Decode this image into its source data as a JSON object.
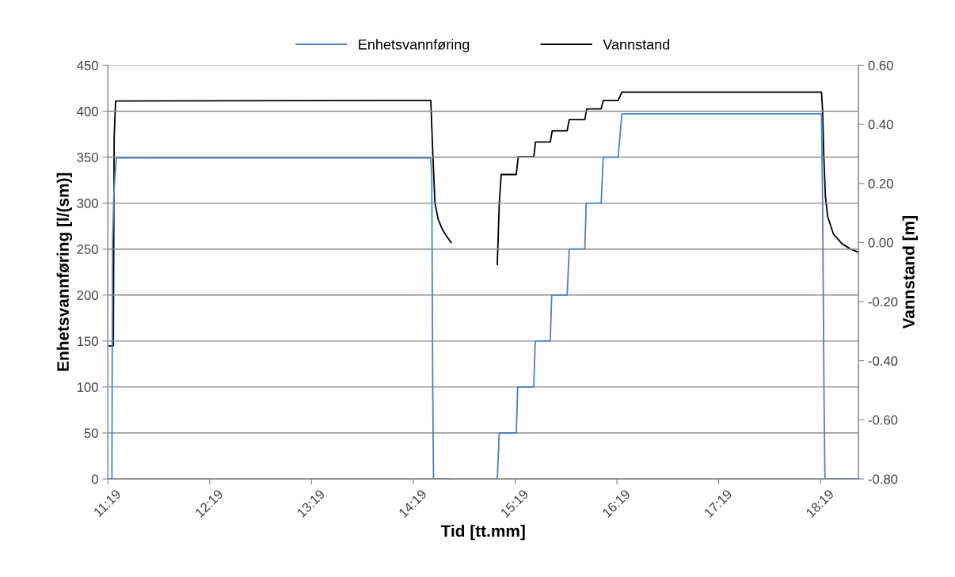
{
  "chart_data": {
    "type": "line",
    "xlabel": "Tid [tt.mm]",
    "ylabel": "Enhetsvannføring [l/(sm)]",
    "y2label": "Vannstand [m]",
    "xlim": [
      11.3167,
      18.69
    ],
    "xticks": [
      {
        "value": 11.3167,
        "label": "11:19"
      },
      {
        "value": 12.3167,
        "label": "12:19"
      },
      {
        "value": 13.3167,
        "label": "13:19"
      },
      {
        "value": 14.3167,
        "label": "14:19"
      },
      {
        "value": 15.3167,
        "label": "15:19"
      },
      {
        "value": 16.3167,
        "label": "16:19"
      },
      {
        "value": 17.3167,
        "label": "17:19"
      },
      {
        "value": 18.3167,
        "label": "18:19"
      }
    ],
    "ylim": [
      0,
      450
    ],
    "yticks": [
      0,
      50,
      100,
      150,
      200,
      250,
      300,
      350,
      400,
      450
    ],
    "y2lim": [
      -0.8,
      0.6
    ],
    "y2ticks": [
      {
        "value": -0.8,
        "label": "-0.80"
      },
      {
        "value": -0.6,
        "label": "-0.60"
      },
      {
        "value": -0.4,
        "label": "-0.40"
      },
      {
        "value": -0.2,
        "label": "-0.20"
      },
      {
        "value": 0,
        "label": "0.00"
      },
      {
        "value": 0.2,
        "label": "0.20"
      },
      {
        "value": 0.4,
        "label": "0.40"
      },
      {
        "value": 0.6,
        "label": "0.60"
      }
    ],
    "grid": "y",
    "legend": "top",
    "marker": "none",
    "line_style": "solid",
    "series": [
      {
        "name": "Enhetsvannføring",
        "color": "#4f81bd",
        "x": [
          11.3167,
          11.356,
          11.362,
          11.378,
          11.4,
          14.488,
          14.498,
          14.507,
          14.515,
          14.688,
          14.9,
          15.1415,
          15.161,
          15.328,
          15.342,
          15.5,
          15.514,
          15.662,
          15.676,
          15.828,
          15.848,
          16.001,
          16.015,
          16.162,
          16.182,
          16.329,
          16.365,
          18.326,
          18.337,
          18.351,
          18.36,
          18.69
        ],
        "values": [
          0,
          0,
          257,
          317,
          349,
          349,
          328,
          107,
          0,
          0,
          null,
          0,
          50,
          50,
          100,
          100,
          150,
          150,
          200,
          200,
          250,
          250,
          300,
          300,
          350,
          350,
          397,
          397,
          300,
          88,
          0,
          0
        ]
      },
      {
        "name": "Vannstand",
        "color": "#000000",
        "axis": "y2",
        "x": [
          11.3167,
          11.37,
          11.378,
          11.392,
          14.488,
          14.507,
          14.529,
          14.562,
          14.604,
          14.646,
          14.688,
          14.9,
          15.1415,
          15.161,
          15.18,
          15.328,
          15.347,
          15.5,
          15.517,
          15.662,
          15.681,
          15.828,
          15.848,
          16.001,
          16.02,
          16.162,
          16.182,
          16.329,
          16.365,
          18.326,
          18.337,
          18.349,
          18.365,
          18.388,
          18.443,
          18.527,
          18.61,
          18.69
        ],
        "values": [
          -0.35,
          -0.35,
          0.354,
          0.479,
          0.481,
          0.311,
          0.134,
          0.077,
          0.043,
          0.02,
          0.0,
          null,
          -0.074,
          0.134,
          0.23,
          0.23,
          0.29,
          0.29,
          0.34,
          0.34,
          0.378,
          0.378,
          0.416,
          0.416,
          0.452,
          0.452,
          0.481,
          0.481,
          0.509,
          0.509,
          0.445,
          0.292,
          0.153,
          0.086,
          0.029,
          -0.004,
          -0.022,
          -0.033
        ]
      }
    ]
  }
}
